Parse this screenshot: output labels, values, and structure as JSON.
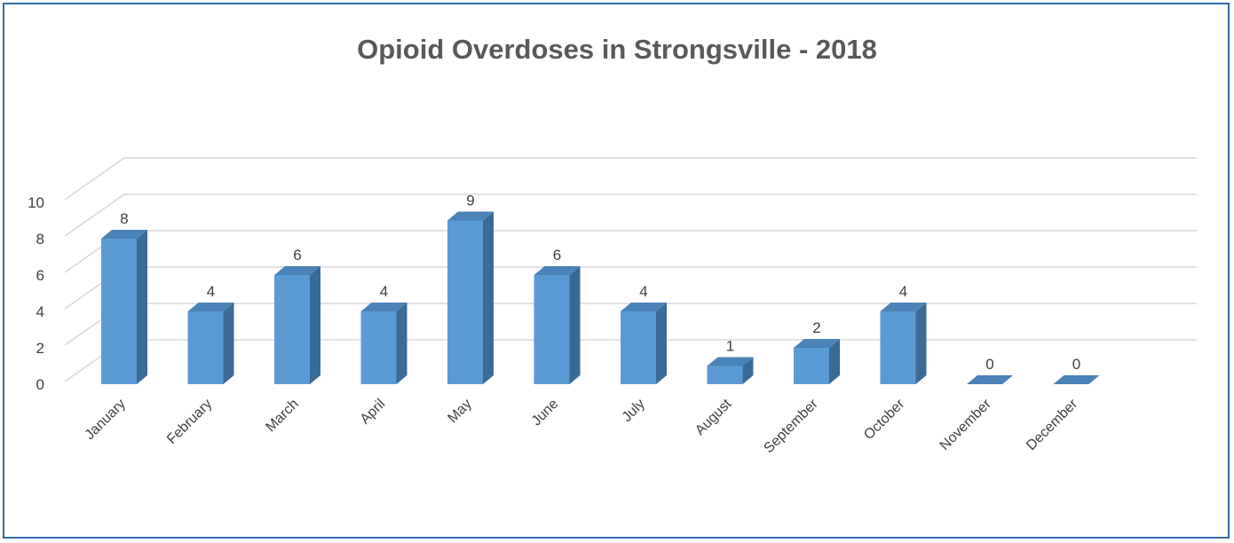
{
  "chart_data": {
    "type": "bar",
    "title": "Opioid Overdoses in Strongsville - 2018",
    "categories": [
      "January",
      "February",
      "March",
      "April",
      "May",
      "June",
      "July",
      "August",
      "September",
      "October",
      "November",
      "December"
    ],
    "values": [
      8,
      4,
      6,
      4,
      9,
      6,
      4,
      1,
      2,
      4,
      0,
      0
    ],
    "yticks": [
      "0",
      "2",
      "4",
      "6",
      "8",
      "10"
    ],
    "ylim": [
      0,
      10
    ],
    "grid": true,
    "bar_color": "#5b9bd5",
    "bar_side_color": "#3a6a96",
    "bar_top_color": "#4a83b8",
    "border_color": "#2e6ea6"
  }
}
